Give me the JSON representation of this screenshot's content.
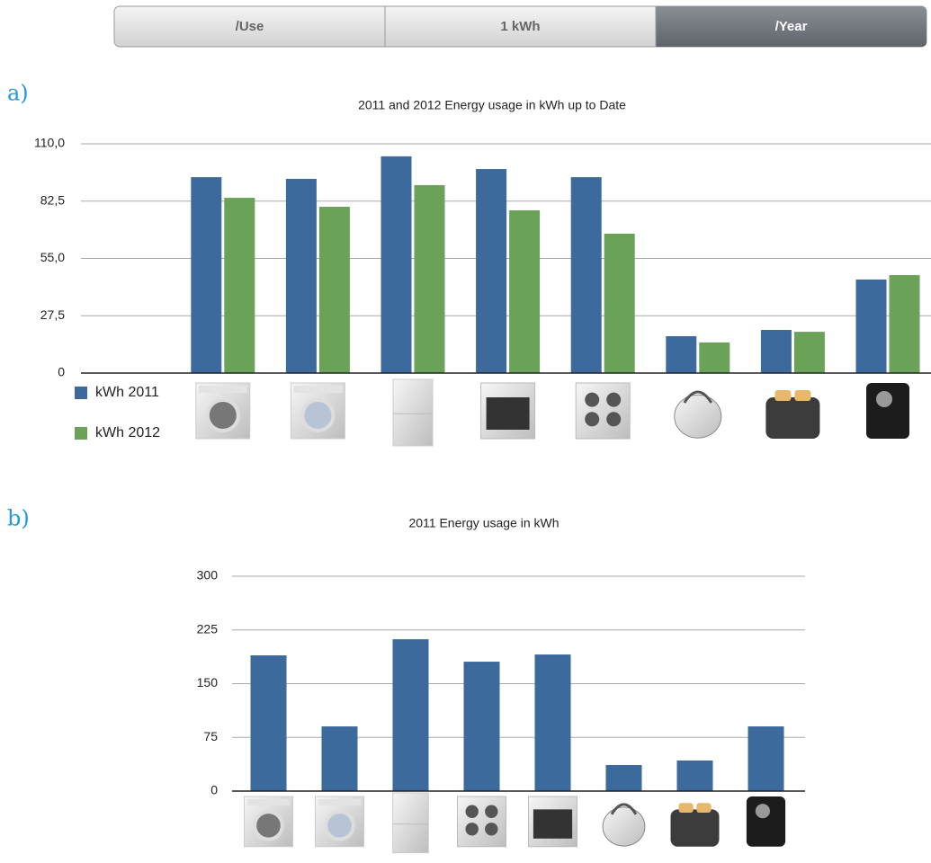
{
  "segmented_control": {
    "items": [
      "/Use",
      "1 kWh",
      "/Year"
    ],
    "selected": 2
  },
  "panel_labels": [
    "a)",
    "b)"
  ],
  "chart_data": [
    {
      "type": "bar",
      "title": "2011 and 2012 Energy usage in kWh up to Date",
      "categories": [
        null,
        null,
        null,
        null,
        null,
        null,
        null,
        null
      ],
      "series": [
        {
          "name": "kWh 2011",
          "color": "#3d6a9d",
          "values": [
            94.0,
            93.2,
            104.0,
            97.9,
            94.0,
            17.7,
            20.7,
            44.9
          ]
        },
        {
          "name": "kWh 2012",
          "color": "#6aa358",
          "values": [
            84.1,
            79.8,
            90.2,
            78.1,
            66.9,
            14.7,
            19.8,
            47.0
          ]
        }
      ],
      "ylim": [
        0,
        110
      ],
      "yticks": [
        0,
        {
          "value": 27.5,
          "label": "27,5"
        },
        {
          "value": 55,
          "label": "55,0"
        },
        {
          "value": 82.5,
          "label": "82,5"
        },
        {
          "value": 110,
          "label": "110,0"
        }
      ],
      "grid": true,
      "legend": "bottom-left"
    },
    {
      "type": "bar",
      "title": "2011 Energy usage in kWh",
      "categories": [
        null,
        null,
        null,
        null,
        null,
        null,
        null,
        null
      ],
      "values": [
        189.5,
        90.3,
        212.0,
        180.7,
        190.7,
        36.4,
        42.7,
        90.3
      ],
      "color": "#3d6a9d",
      "ylim": [
        0,
        300
      ],
      "yticks": [
        0,
        75,
        150,
        225,
        300
      ],
      "grid": true
    }
  ]
}
